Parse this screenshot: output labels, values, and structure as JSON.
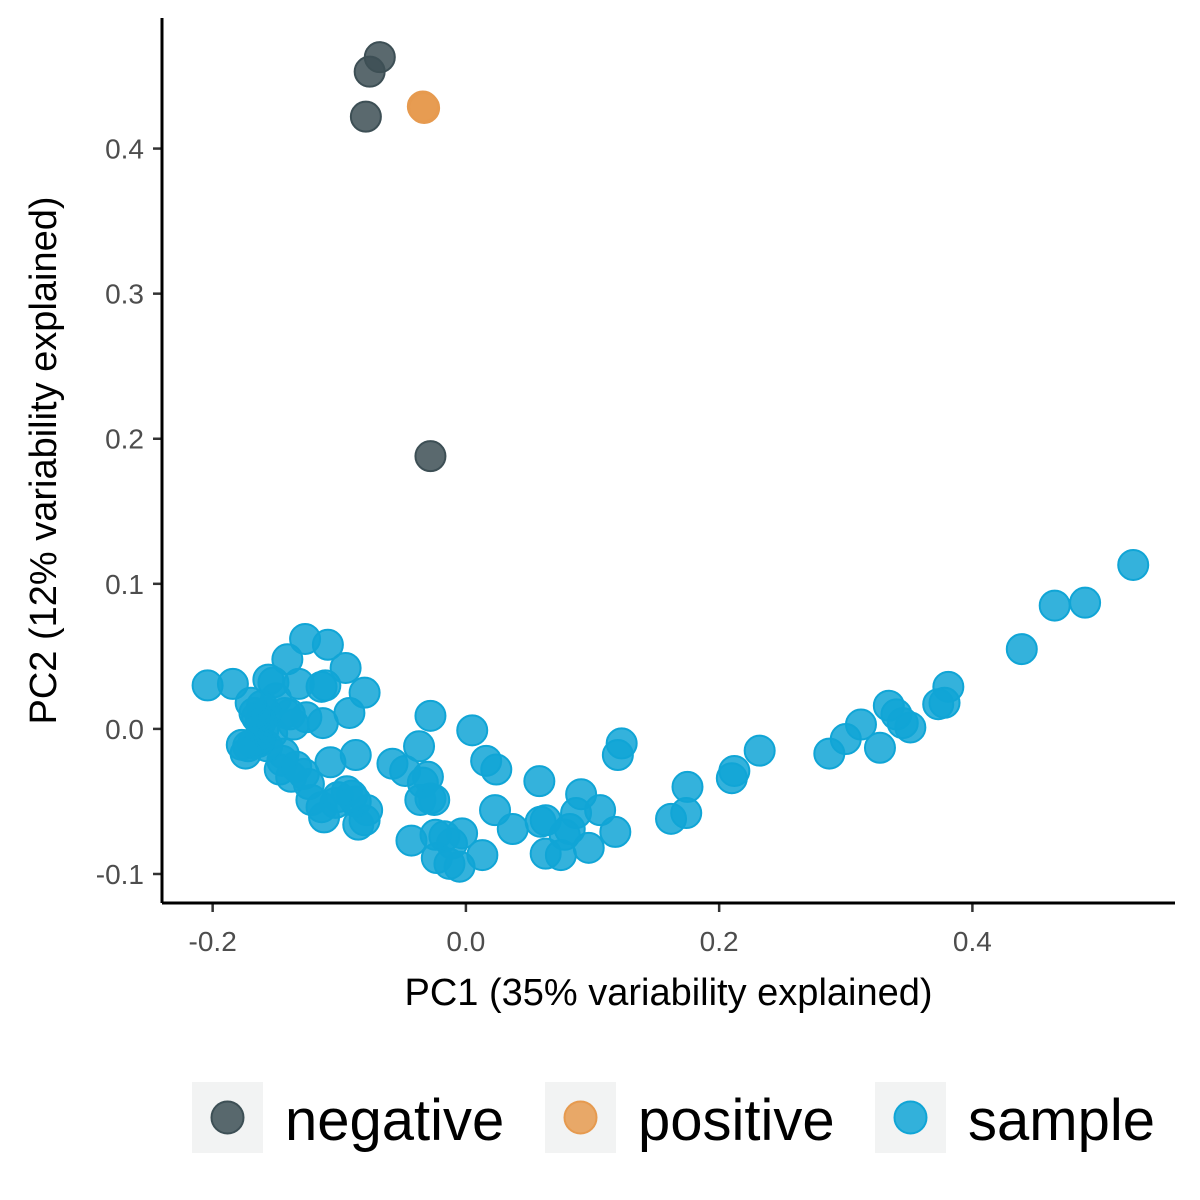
{
  "chart_data": {
    "type": "scatter",
    "xlabel": "PC1 (35% variability explained)",
    "ylabel": "PC2 (12% variability explained)",
    "xlim": [
      -0.24,
      0.56
    ],
    "ylim": [
      -0.12,
      0.49
    ],
    "x_ticks": [
      {
        "value": -0.2,
        "label": "-0.2"
      },
      {
        "value": 0.0,
        "label": "0.0"
      },
      {
        "value": 0.2,
        "label": "0.2"
      },
      {
        "value": 0.4,
        "label": "0.4"
      }
    ],
    "y_ticks": [
      {
        "value": -0.1,
        "label": "-0.1"
      },
      {
        "value": 0.0,
        "label": "0.0"
      },
      {
        "value": 0.1,
        "label": "0.1"
      },
      {
        "value": 0.2,
        "label": "0.2"
      },
      {
        "value": 0.3,
        "label": "0.3"
      },
      {
        "value": 0.4,
        "label": "0.4"
      }
    ],
    "grid": false,
    "legend": "bottom",
    "series": [
      {
        "name": "negative",
        "color": "#3d4f55",
        "points": [
          [
            -0.068,
            0.463
          ],
          [
            -0.076,
            0.453
          ],
          [
            -0.079,
            0.422
          ],
          [
            -0.028,
            0.188
          ]
        ]
      },
      {
        "name": "positive",
        "color": "#e69a4f",
        "points": [
          [
            -0.034,
            0.429
          ],
          [
            -0.033,
            0.428
          ]
        ]
      },
      {
        "name": "sample",
        "color": "#10a5d6",
        "points": [
          [
            0.527,
            0.113
          ],
          [
            0.489,
            0.087
          ],
          [
            0.465,
            0.085
          ],
          [
            0.439,
            0.055
          ],
          [
            0.381,
            0.029
          ],
          [
            0.378,
            0.018
          ],
          [
            0.373,
            0.017
          ],
          [
            0.351,
            0.001
          ],
          [
            0.345,
            0.004
          ],
          [
            0.34,
            0.01
          ],
          [
            0.334,
            0.016
          ],
          [
            0.312,
            0.003
          ],
          [
            0.3,
            -0.007
          ],
          [
            0.287,
            -0.017
          ],
          [
            0.327,
            -0.013
          ],
          [
            0.232,
            -0.015
          ],
          [
            0.212,
            -0.029
          ],
          [
            0.21,
            -0.034
          ],
          [
            0.175,
            -0.04
          ],
          [
            0.174,
            -0.058
          ],
          [
            0.162,
            -0.062
          ],
          [
            0.123,
            -0.01
          ],
          [
            0.12,
            -0.018
          ],
          [
            0.118,
            -0.071
          ],
          [
            0.106,
            -0.056
          ],
          [
            0.097,
            -0.082
          ],
          [
            0.091,
            -0.045
          ],
          [
            0.087,
            -0.058
          ],
          [
            0.082,
            -0.069
          ],
          [
            0.078,
            -0.073
          ],
          [
            0.075,
            -0.087
          ],
          [
            0.063,
            -0.086
          ],
          [
            0.063,
            -0.063
          ],
          [
            0.059,
            -0.064
          ],
          [
            0.058,
            -0.036
          ],
          [
            0.037,
            -0.069
          ],
          [
            0.023,
            -0.056
          ],
          [
            0.024,
            -0.028
          ],
          [
            0.016,
            -0.022
          ],
          [
            0.013,
            -0.087
          ],
          [
            0.005,
            -0.001
          ],
          [
            -0.003,
            -0.072
          ],
          [
            -0.005,
            -0.095
          ],
          [
            -0.011,
            -0.079
          ],
          [
            -0.013,
            -0.093
          ],
          [
            -0.017,
            -0.074
          ],
          [
            -0.023,
            -0.089
          ],
          [
            -0.024,
            -0.073
          ],
          [
            -0.028,
            0.009
          ],
          [
            -0.025,
            -0.049
          ],
          [
            -0.028,
            -0.048
          ],
          [
            -0.03,
            -0.033
          ],
          [
            -0.034,
            -0.037
          ],
          [
            -0.036,
            -0.049
          ],
          [
            -0.037,
            -0.012
          ],
          [
            -0.043,
            -0.077
          ],
          [
            -0.048,
            -0.029
          ],
          [
            -0.058,
            -0.024
          ],
          [
            -0.078,
            -0.056
          ],
          [
            -0.08,
            -0.063
          ],
          [
            -0.085,
            -0.066
          ],
          [
            -0.087,
            -0.05
          ],
          [
            -0.08,
            0.025
          ],
          [
            -0.087,
            -0.018
          ],
          [
            -0.09,
            -0.046
          ],
          [
            -0.092,
            0.011
          ],
          [
            -0.094,
            -0.043
          ],
          [
            -0.095,
            0.042
          ],
          [
            -0.101,
            -0.047
          ],
          [
            -0.103,
            -0.051
          ],
          [
            -0.107,
            -0.023
          ],
          [
            -0.109,
            0.058
          ],
          [
            -0.111,
            0.03
          ],
          [
            -0.112,
            -0.061
          ],
          [
            -0.113,
            0.004
          ],
          [
            -0.114,
            -0.054
          ],
          [
            -0.114,
            0.029
          ],
          [
            -0.122,
            -0.049
          ],
          [
            -0.124,
            -0.038
          ],
          [
            -0.126,
            0.008
          ],
          [
            -0.127,
            0.062
          ],
          [
            -0.128,
            -0.031
          ],
          [
            -0.132,
            0.031
          ],
          [
            -0.134,
            -0.026
          ],
          [
            -0.136,
            0.003
          ],
          [
            -0.138,
            -0.033
          ],
          [
            -0.139,
            0.01
          ],
          [
            -0.141,
            0.048
          ],
          [
            -0.143,
            0.011
          ],
          [
            -0.144,
            -0.017
          ],
          [
            -0.145,
            -0.022
          ],
          [
            -0.147,
            -0.028
          ],
          [
            -0.15,
            0.021
          ],
          [
            -0.152,
            0.032
          ],
          [
            -0.153,
            -0.003
          ],
          [
            -0.156,
            0.034
          ],
          [
            -0.157,
            -0.012
          ],
          [
            -0.158,
            0.011
          ],
          [
            -0.16,
            -0.001
          ],
          [
            -0.161,
            0.016
          ],
          [
            -0.162,
            0.005
          ],
          [
            -0.163,
            -0.008
          ],
          [
            -0.164,
            -0.009
          ],
          [
            -0.165,
            0.008
          ],
          [
            -0.167,
            0.011
          ],
          [
            -0.168,
            -0.01
          ],
          [
            -0.17,
            0.018
          ],
          [
            -0.172,
            -0.012
          ],
          [
            -0.174,
            -0.017
          ],
          [
            -0.177,
            -0.011
          ],
          [
            -0.184,
            0.031
          ],
          [
            -0.204,
            0.03
          ]
        ]
      }
    ]
  }
}
